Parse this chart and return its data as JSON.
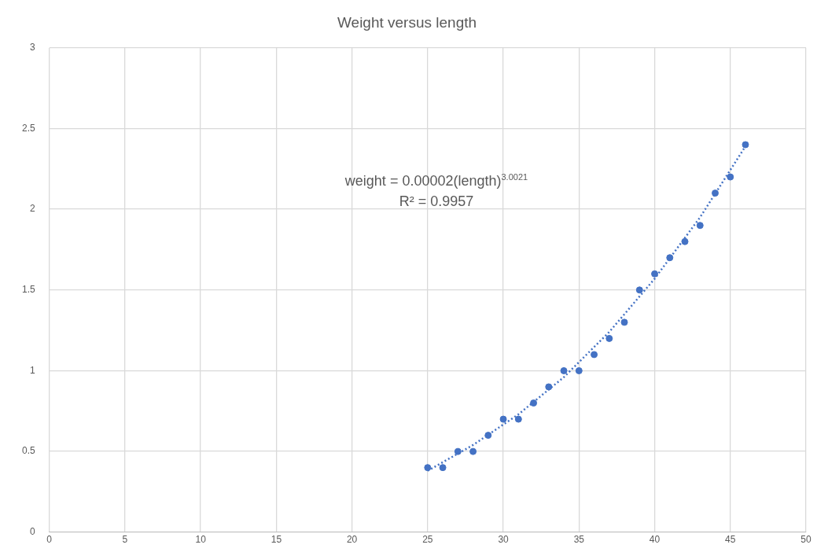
{
  "chart_data": {
    "type": "scatter",
    "title": "Weight versus length",
    "xlim": [
      0,
      50
    ],
    "xticks": [
      0,
      5,
      10,
      15,
      20,
      25,
      30,
      35,
      40,
      45,
      50
    ],
    "ylim": [
      0,
      3
    ],
    "yticks": [
      0,
      0.5,
      1,
      1.5,
      2,
      2.5,
      3
    ],
    "grid": true,
    "legend": false,
    "marker": "circle",
    "annotations": [
      "weight  = 0.00002(length)$^{3.0021}$",
      "R² = 0.9957"
    ],
    "series": [
      {
        "type": "scatter",
        "color": "#4472c4",
        "x": [
          25,
          26,
          27,
          28,
          29,
          30,
          31,
          32,
          33,
          34,
          35,
          36,
          37,
          38,
          39,
          40,
          41,
          42,
          43,
          44,
          45,
          46
        ],
        "values": [
          0.4,
          0.4,
          0.5,
          0.5,
          0.6,
          0.7,
          0.7,
          0.8,
          0.9,
          1.0,
          1.0,
          1.1,
          1.2,
          1.3,
          1.5,
          1.6,
          1.7,
          1.8,
          1.9,
          2.1,
          2.2,
          2.4
        ]
      },
      {
        "type": "line",
        "color": "#4472c4",
        "line_style": "dotted",
        "marker": "none",
        "x": [
          25,
          28,
          31,
          34,
          37,
          40,
          43,
          46
        ],
        "values": [
          0.38,
          0.54,
          0.73,
          0.96,
          1.24,
          1.57,
          1.95,
          2.39
        ]
      }
    ]
  }
}
